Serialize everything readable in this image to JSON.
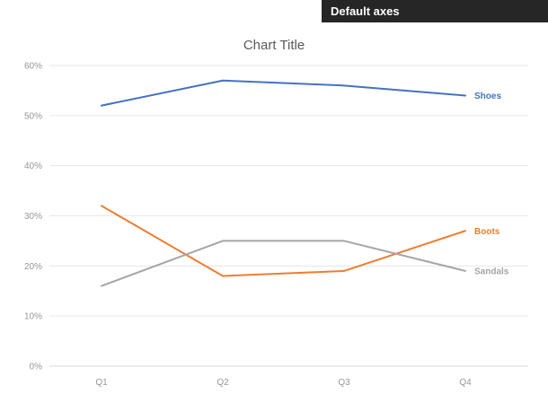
{
  "header": {
    "label": "Default axes"
  },
  "chart_data": {
    "type": "line",
    "title": "Chart Title",
    "categories": [
      "Q1",
      "Q2",
      "Q3",
      "Q4"
    ],
    "series": [
      {
        "name": "Shoes",
        "color": "#4472C4",
        "values": [
          52,
          57,
          56,
          54
        ]
      },
      {
        "name": "Boots",
        "color": "#ED7D31",
        "values": [
          32,
          18,
          19,
          27
        ]
      },
      {
        "name": "Sandals",
        "color": "#A5A5A5",
        "values": [
          16,
          25,
          25,
          19
        ]
      }
    ],
    "ylim": [
      0,
      60
    ],
    "yticks": [
      0,
      10,
      20,
      30,
      40,
      50,
      60
    ],
    "ytick_suffix": "%",
    "grid": "horizontal",
    "legend": "labels-at-line-end",
    "colors": {
      "gridline": "#E6E6E6",
      "zero_gridline": "#D9D9D9",
      "tick_label": "#969696",
      "title": "#595959",
      "header_bg": "#262626",
      "header_text": "#FFFFFF"
    }
  }
}
